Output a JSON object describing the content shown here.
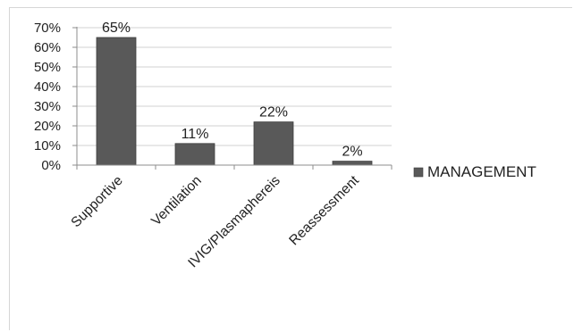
{
  "chart_data": {
    "type": "bar",
    "categories": [
      "Supportive",
      "Ventilation",
      "IVIG/Plasmaphereis",
      "Reassessment"
    ],
    "series": [
      {
        "name": "MANAGEMENT",
        "values": [
          65,
          11,
          22,
          2
        ],
        "data_labels": [
          "65%",
          "11%",
          "22%",
          "2%"
        ],
        "color": "#595959"
      }
    ],
    "yticks": [
      0,
      10,
      20,
      30,
      40,
      50,
      60,
      70
    ],
    "ytick_labels": [
      "0%",
      "10%",
      "20%",
      "30%",
      "40%",
      "50%",
      "60%",
      "70%"
    ],
    "ylim": [
      0,
      70
    ],
    "grid": true,
    "legend_position": "right"
  }
}
